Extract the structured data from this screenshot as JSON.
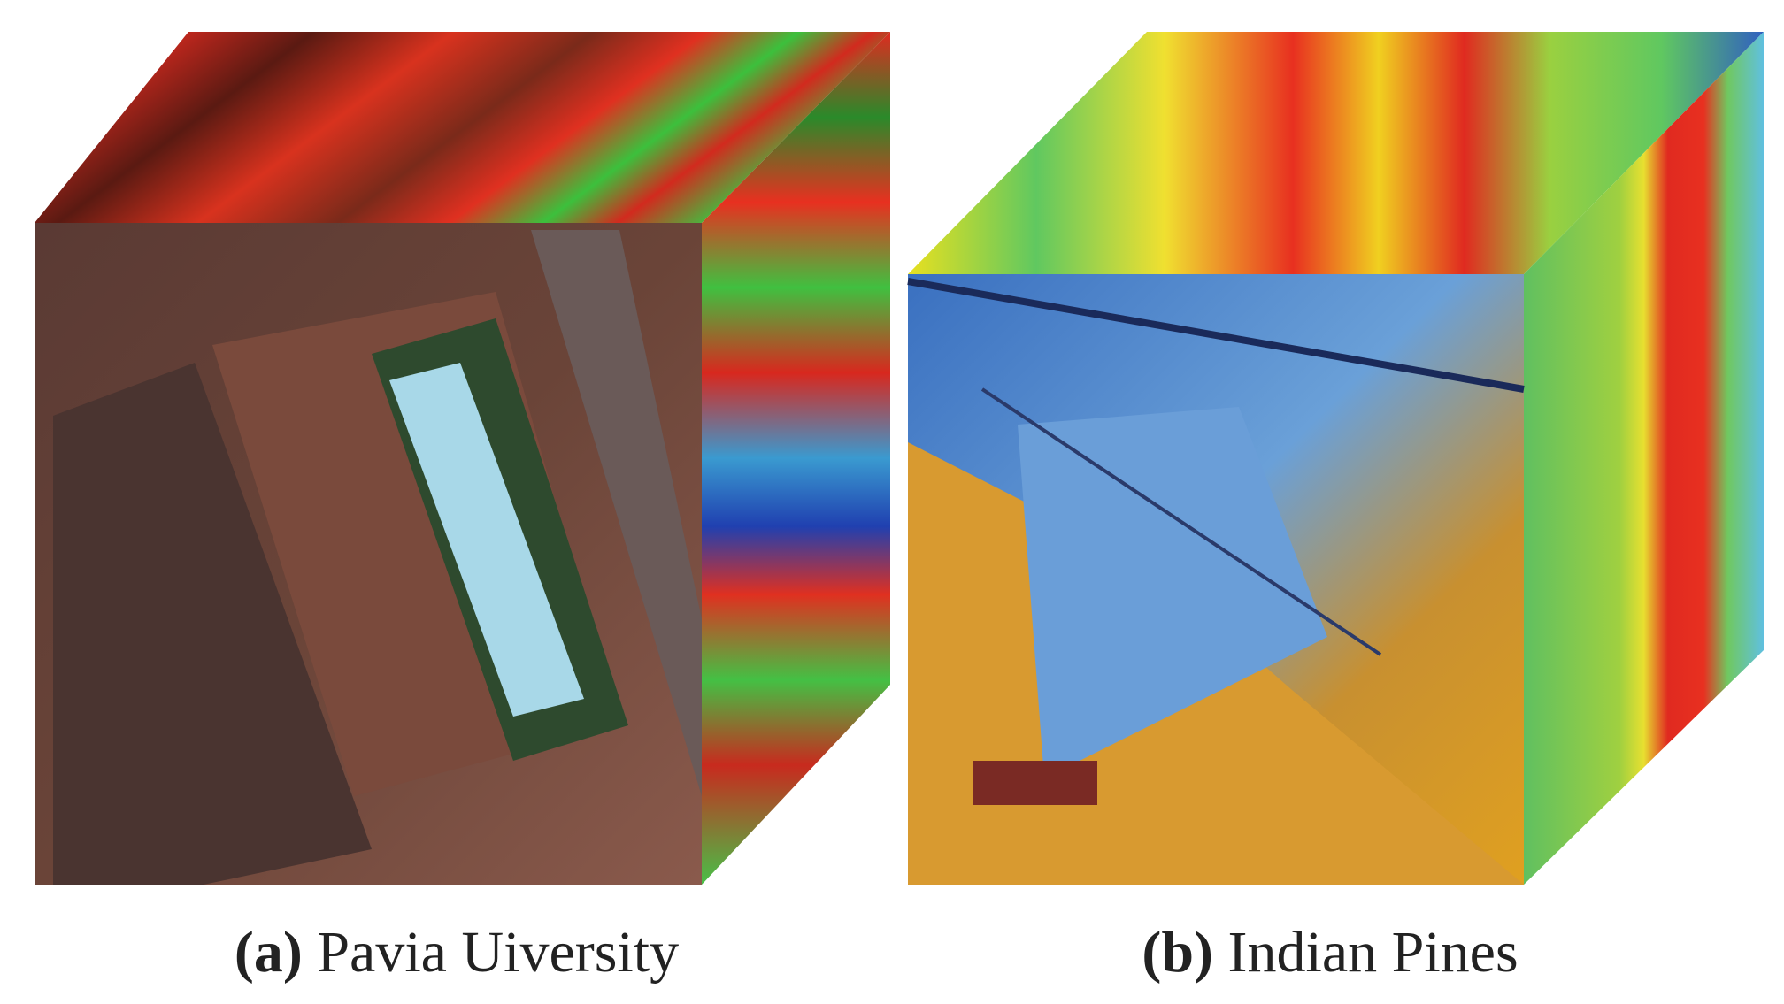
{
  "figure": {
    "panels": [
      {
        "label": "(a)",
        "caption": "Pavia Uiversity"
      },
      {
        "label": "(b)",
        "caption": "Indian Pines"
      }
    ]
  }
}
